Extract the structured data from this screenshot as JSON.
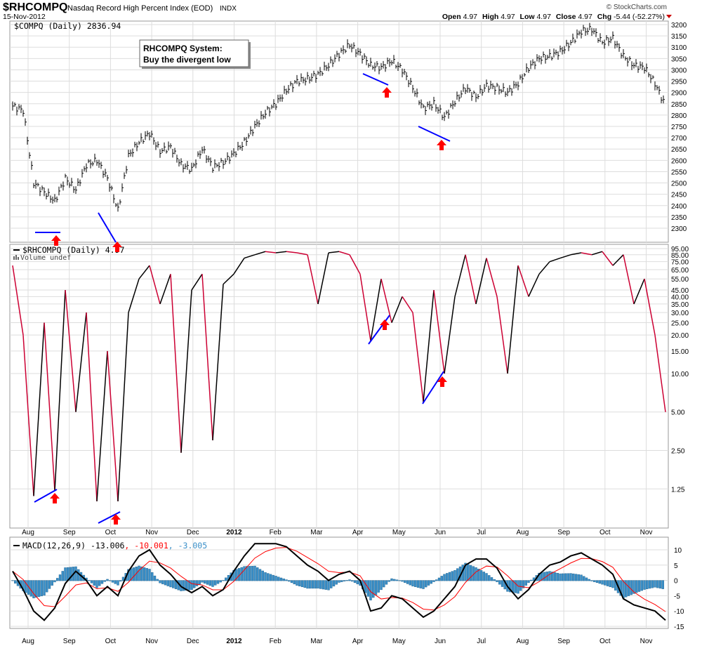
{
  "header": {
    "symbol": "$RHCOMPQ",
    "name": "Nasdaq Record High Percent Index (EOD)",
    "exchange": "INDX",
    "date": "15-Nov-2012",
    "copyright": "© StockCharts.com",
    "open_label": "Open",
    "open": "4.97",
    "high_label": "High",
    "high": "4.97",
    "low_label": "Low",
    "low": "4.97",
    "close_label": "Close",
    "close": "4.97",
    "chg_label": "Chg",
    "chg": "-5.44 (-52.27%)"
  },
  "annotation": {
    "line1": "RHCOMPQ System:",
    "line2": "Buy the divergent low"
  },
  "colors": {
    "up": "#000000",
    "down": "#cc0033",
    "signal": "#ff0000",
    "hist": "#3a8fc8",
    "mark": "#0000ff",
    "arrow": "#ff0000"
  },
  "chart_data": [
    {
      "type": "line",
      "title": "$COMPQ (Daily) 2836.94",
      "ylim": [
        2300,
        3200
      ],
      "yticks": [
        3200,
        3150,
        3100,
        3050,
        3000,
        2950,
        2900,
        2850,
        2800,
        2750,
        2700,
        2650,
        2600,
        2550,
        2500,
        2450,
        2400,
        2350,
        2300
      ],
      "xlim_months_from_aug2011": [
        -0.37,
        15.47
      ],
      "values": [
        2840,
        2820,
        2500,
        2460,
        2420,
        2520,
        2470,
        2580,
        2600,
        2520,
        2380,
        2620,
        2680,
        2720,
        2640,
        2660,
        2580,
        2560,
        2650,
        2570,
        2590,
        2630,
        2680,
        2750,
        2810,
        2850,
        2910,
        2950,
        2960,
        2980,
        3020,
        3070,
        3110,
        3070,
        3020,
        3010,
        3040,
        3000,
        2920,
        2830,
        2850,
        2790,
        2860,
        2920,
        2880,
        2930,
        2920,
        2900,
        2940,
        3010,
        3050,
        3060,
        3080,
        3120,
        3170,
        3180,
        3120,
        3140,
        3060,
        3020,
        3010,
        2940,
        2840
      ]
    },
    {
      "type": "line",
      "title": "$RHCOMPQ (Daily) 4.97",
      "sublabel": "Volume undef",
      "scale": "log",
      "ylim": [
        0.95,
        100
      ],
      "yticks": [
        "95.00",
        "85.00",
        "75.00",
        "65.00",
        "55.00",
        "45.00",
        "40.00",
        "35.00",
        "30.00",
        "25.00",
        "20.00",
        "15.00",
        "10.00",
        "5.00",
        "2.50",
        "1.25"
      ],
      "values": [
        70,
        20,
        1.1,
        25,
        1.2,
        45,
        5,
        30,
        1.0,
        15,
        1.0,
        30,
        55,
        70,
        35,
        60,
        2.4,
        45,
        60,
        3,
        50,
        60,
        80,
        85,
        90,
        88,
        90,
        88,
        85,
        35,
        88,
        90,
        85,
        60,
        18,
        55,
        25,
        40,
        30,
        6,
        45,
        10,
        40,
        85,
        35,
        80,
        40,
        10,
        70,
        40,
        60,
        75,
        80,
        85,
        88,
        85,
        90,
        70,
        85,
        35,
        55,
        20,
        5
      ]
    },
    {
      "type": "line",
      "title": "MACD(12,26,9)",
      "macd_value": "-13.006",
      "signal_value": "-10.001",
      "hist_value": "-3.005",
      "ylim": [
        -15,
        13
      ],
      "yticks": [
        10,
        5,
        0,
        -5,
        -10,
        -15
      ],
      "macd": [
        3,
        -3,
        -10,
        -13,
        -9,
        -1,
        3,
        0,
        -5,
        -2,
        -5,
        3,
        8,
        10,
        5,
        2,
        -2,
        -4,
        -2,
        -5,
        -3,
        3,
        8,
        12,
        12,
        12,
        11,
        8,
        5,
        3,
        0,
        2,
        3,
        0,
        -10,
        -9,
        -5,
        -6,
        -9,
        -12,
        -10,
        -6,
        -2,
        5,
        7,
        7,
        4,
        -2,
        -6,
        -3,
        2,
        5,
        6,
        8,
        9,
        7,
        5,
        2,
        -6,
        -8,
        -9,
        -10,
        -13
      ]
    }
  ],
  "x_axis": {
    "labels": [
      "Aug",
      "Sep",
      "Oct",
      "Nov",
      "Dec",
      "2012",
      "Feb",
      "Mar",
      "Apr",
      "May",
      "Jun",
      "Jul",
      "Aug",
      "Sep",
      "Oct",
      "Nov"
    ]
  }
}
